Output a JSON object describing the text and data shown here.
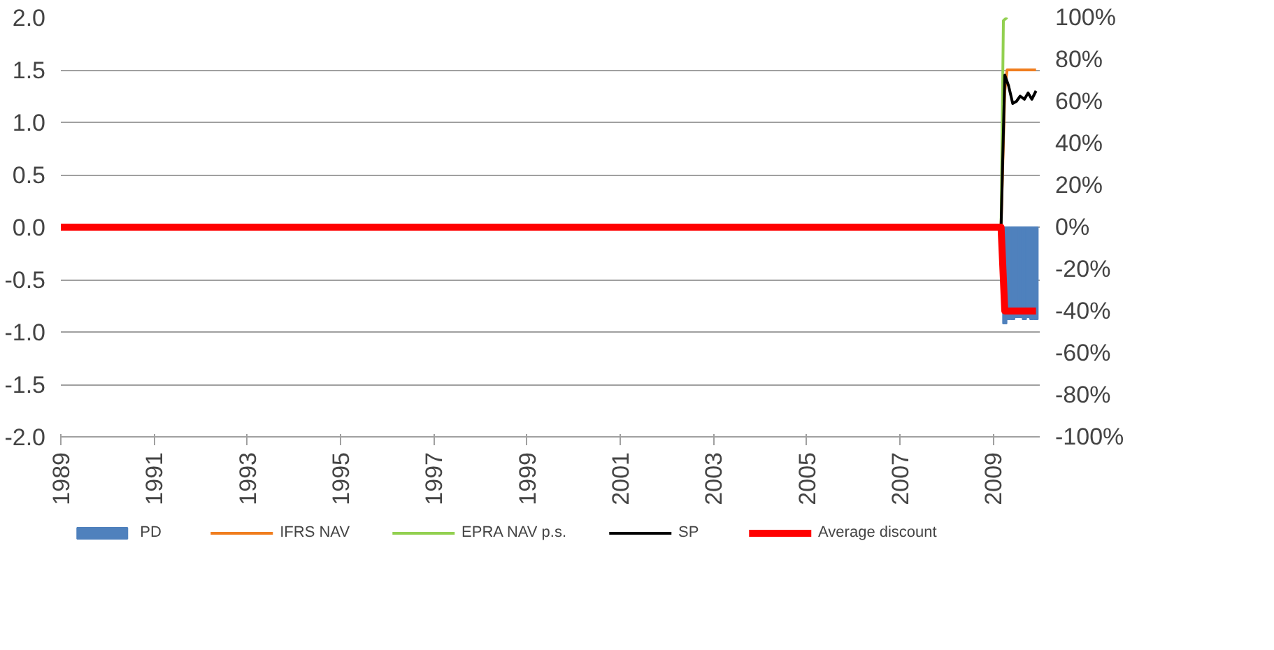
{
  "chart_data": {
    "type": "line",
    "xlim": [
      1989,
      2010
    ],
    "xticks": [
      1989,
      1991,
      1993,
      1995,
      1997,
      1999,
      2001,
      2003,
      2005,
      2007,
      2009
    ],
    "ylim": [
      -2.0,
      2.0
    ],
    "yticks": [
      {
        "value": -2,
        "label": "-2.0"
      },
      {
        "value": -1.5,
        "label": "-1.5"
      },
      {
        "value": -1,
        "label": "-1.0"
      },
      {
        "value": -0.5,
        "label": "-0.5"
      },
      {
        "value": 0,
        "label": "0.0"
      },
      {
        "value": 0.5,
        "label": "0.5"
      },
      {
        "value": 1,
        "label": "1.0"
      },
      {
        "value": 1.5,
        "label": "1.5"
      },
      {
        "value": 2,
        "label": "2.0"
      }
    ],
    "y2lim": [
      -100,
      100
    ],
    "y2ticks": [
      {
        "value": -100,
        "label": "-100%"
      },
      {
        "value": -80,
        "label": "-80%"
      },
      {
        "value": -60,
        "label": "-60%"
      },
      {
        "value": -40,
        "label": "-40%"
      },
      {
        "value": -20,
        "label": "-20%"
      },
      {
        "value": 0,
        "label": "0%"
      },
      {
        "value": 20,
        "label": "20%"
      },
      {
        "value": 40,
        "label": "40%"
      },
      {
        "value": 60,
        "label": "60%"
      },
      {
        "value": 80,
        "label": "80%"
      },
      {
        "value": 100,
        "label": "100%"
      }
    ],
    "grid": "y",
    "legend": "bottom",
    "series": [
      {
        "name": "PD",
        "type": "bar",
        "axis": "y2",
        "color": "#4f81bd",
        "x": [
          2009.25,
          2009.33,
          2009.42,
          2009.5,
          2009.58,
          2009.67,
          2009.75,
          2009.83,
          2009.92
        ],
        "values": [
          -46,
          -44,
          -44,
          -43,
          -43,
          -44,
          -43,
          -44,
          -44
        ]
      },
      {
        "name": "IFRS NAV",
        "color": "#f07d1e",
        "x": [
          2009.17,
          2009.25,
          2009.3,
          2009.92
        ],
        "values": [
          0,
          1.3,
          1.5,
          1.5
        ]
      },
      {
        "name": "EPRA NAV p.s.",
        "color": "#92d050",
        "x": [
          2009.17,
          2009.22,
          2009.3
        ],
        "values": [
          0,
          1.97,
          2.0
        ]
      },
      {
        "name": "SP",
        "color": "#000000",
        "x": [
          2009.17,
          2009.25,
          2009.33,
          2009.42,
          2009.5,
          2009.58,
          2009.67,
          2009.75,
          2009.83,
          2009.92
        ],
        "values": [
          0,
          1.45,
          1.35,
          1.18,
          1.2,
          1.25,
          1.22,
          1.28,
          1.22,
          1.3
        ]
      },
      {
        "name": "Average discount",
        "axis": "y2",
        "color": "#ff0000",
        "x": [
          1989,
          2009.17,
          2009.25,
          2009.92
        ],
        "values": [
          0,
          0,
          -40,
          -40
        ]
      }
    ]
  }
}
